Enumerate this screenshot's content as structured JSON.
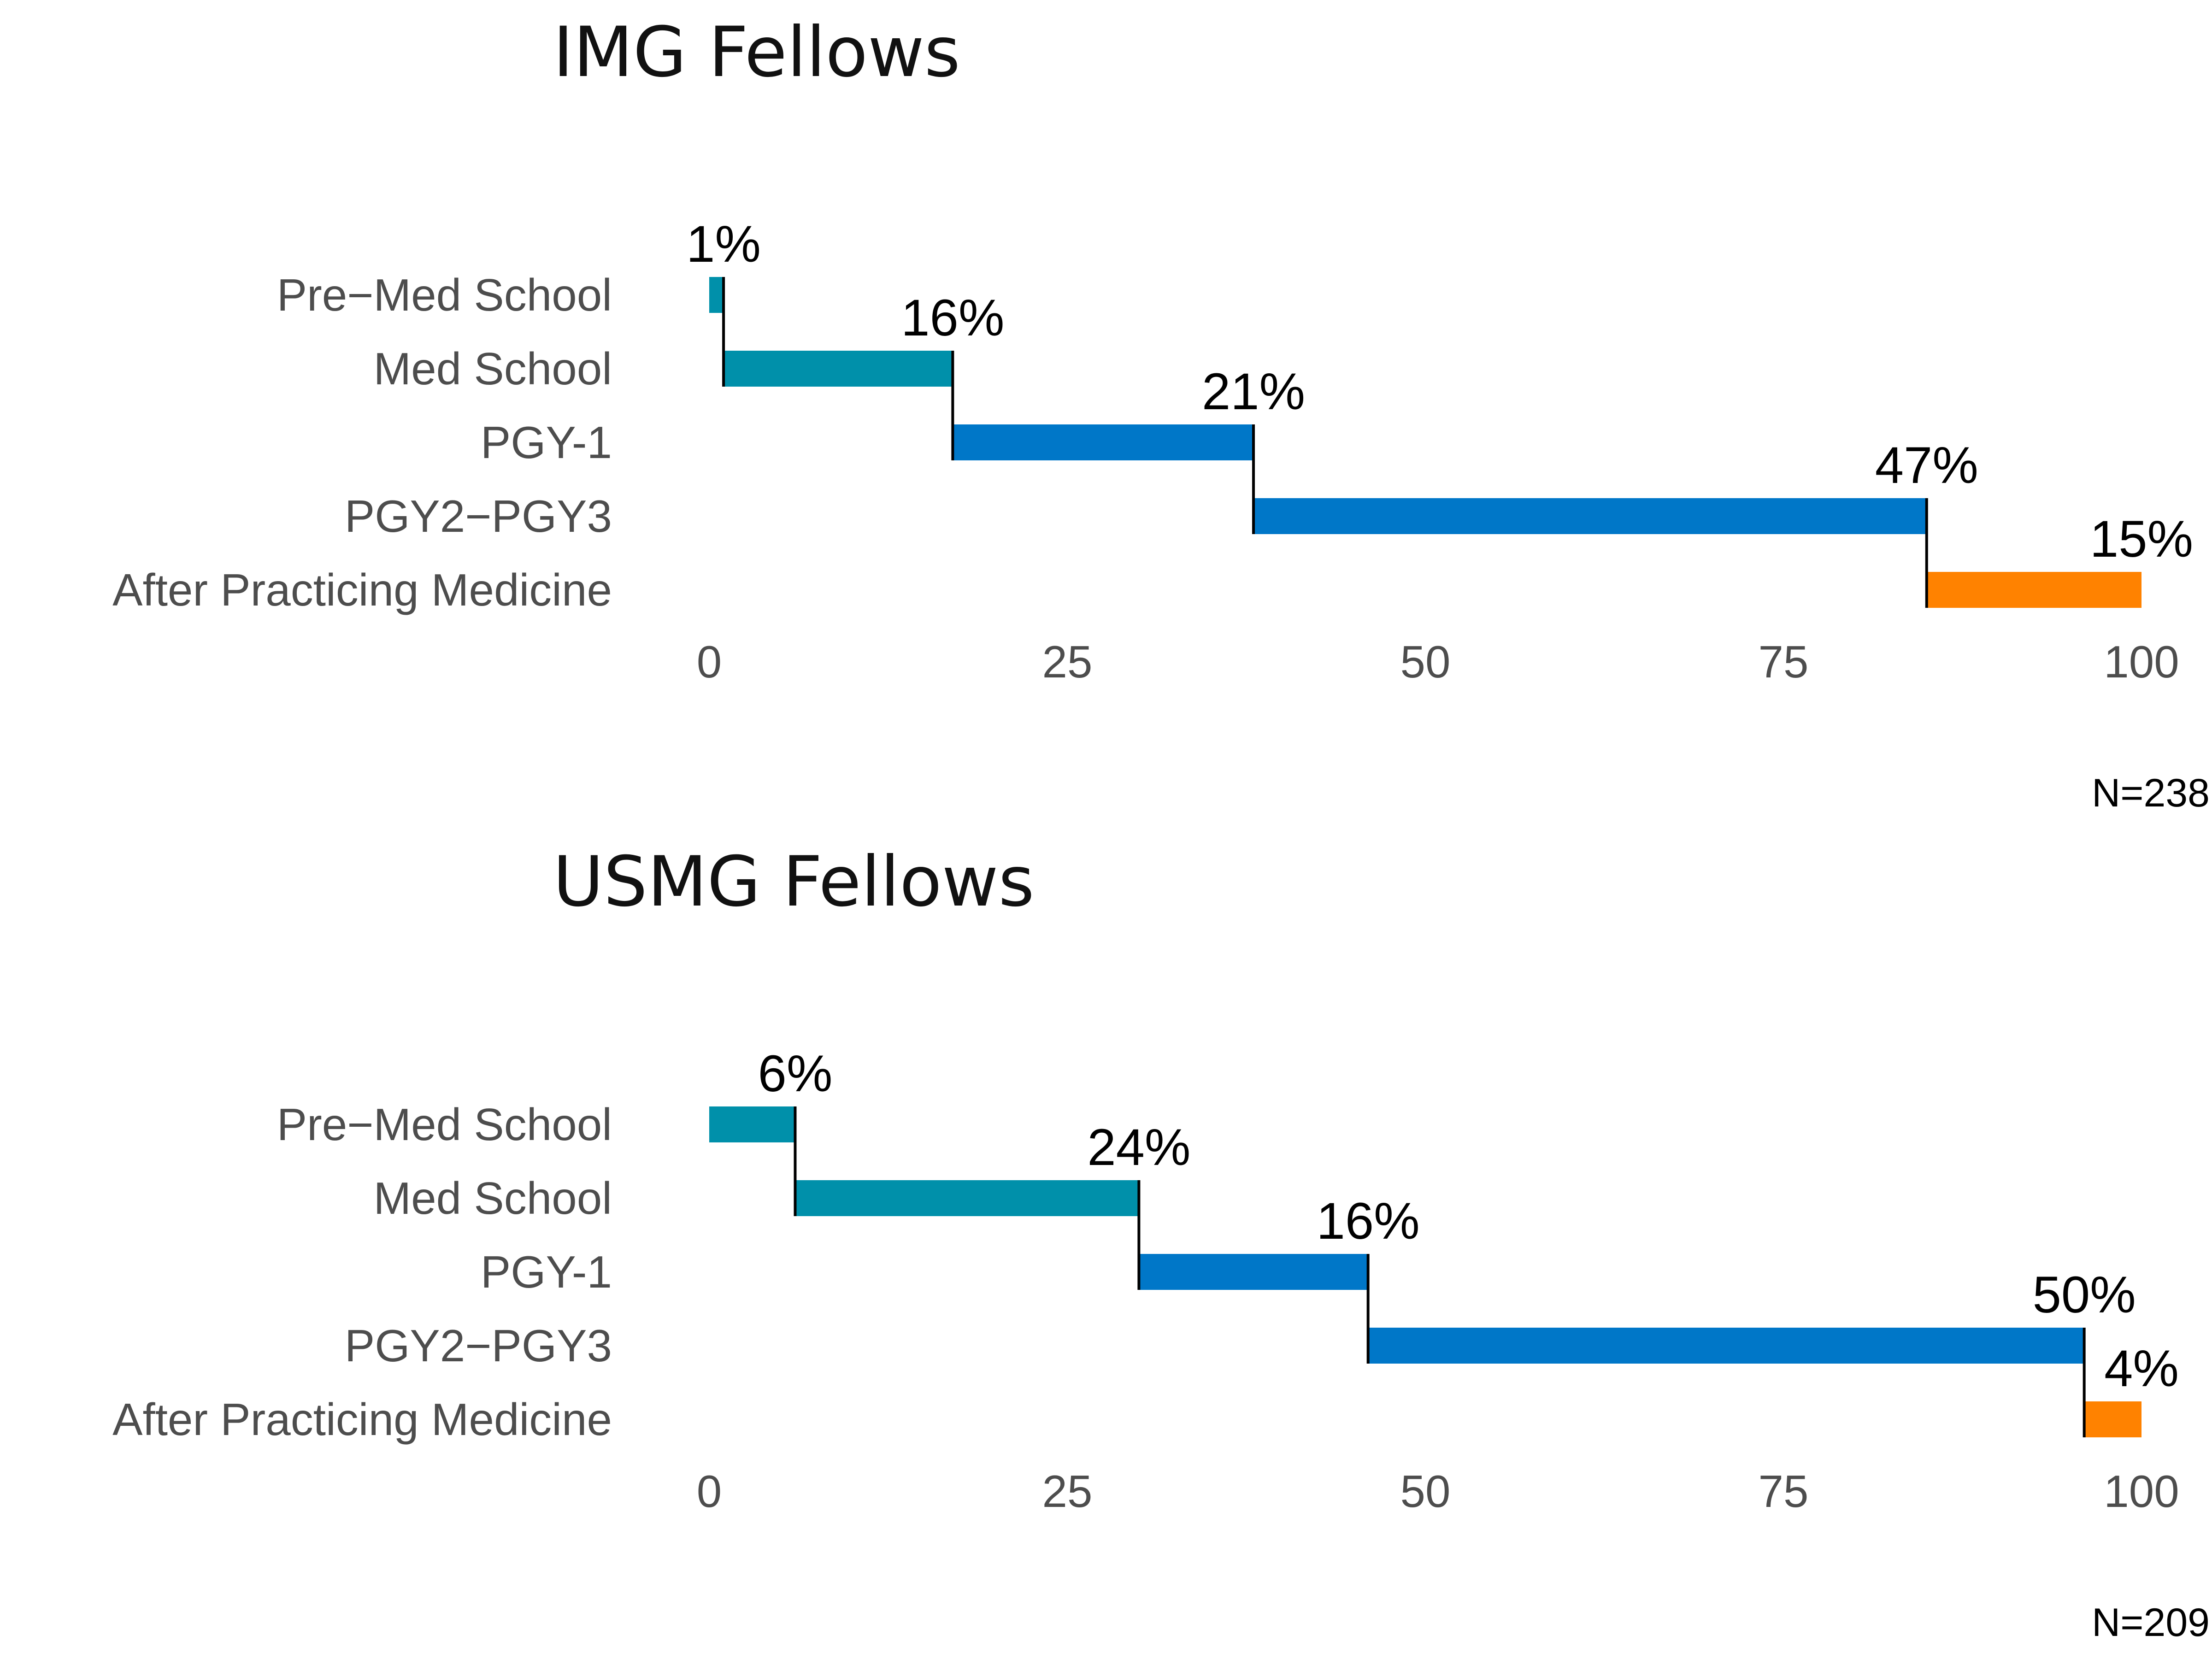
{
  "chart_data": [
    {
      "type": "bar",
      "subtype": "waterfall",
      "title": "IMG Fellows",
      "categories": [
        "Pre−Med School",
        "Med School",
        "PGY-1",
        "PGY2−PGY3",
        "After Practicing Medicine"
      ],
      "values": [
        1,
        16,
        21,
        47,
        15
      ],
      "starts": [
        0,
        1,
        17,
        38,
        85
      ],
      "data_labels": [
        "1%",
        "16%",
        "21%",
        "47%",
        "15%"
      ],
      "bar_colors": [
        "#0090aa",
        "#0090aa",
        "#0077c8",
        "#0077c8",
        "#ff8200"
      ],
      "xlim": [
        0,
        100
      ],
      "xticks": [
        0,
        25,
        50,
        75,
        100
      ],
      "xlabel": "",
      "ylabel": "",
      "grid": false,
      "note": "N=238"
    },
    {
      "type": "bar",
      "subtype": "waterfall",
      "title": "USMG Fellows",
      "categories": [
        "Pre−Med School",
        "Med School",
        "PGY-1",
        "PGY2−PGY3",
        "After Practicing Medicine"
      ],
      "values": [
        6,
        24,
        16,
        50,
        4
      ],
      "starts": [
        0,
        6,
        30,
        46,
        96
      ],
      "data_labels": [
        "6%",
        "24%",
        "16%",
        "50%",
        "4%"
      ],
      "bar_colors": [
        "#0090aa",
        "#0090aa",
        "#0077c8",
        "#0077c8",
        "#ff8200"
      ],
      "xlim": [
        0,
        100
      ],
      "xticks": [
        0,
        25,
        50,
        75,
        100
      ],
      "xlabel": "",
      "ylabel": "",
      "grid": false,
      "note": "N=209"
    }
  ]
}
